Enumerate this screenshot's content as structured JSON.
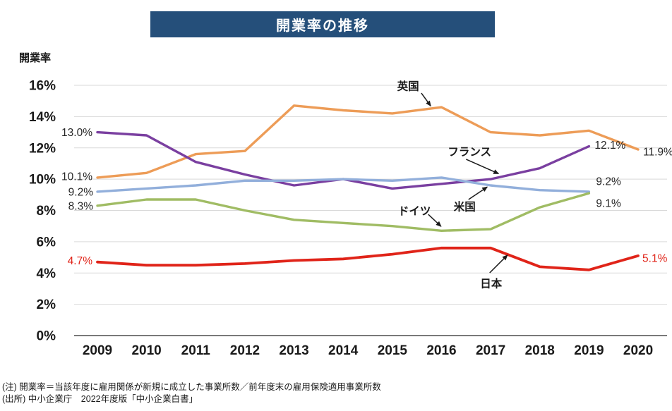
{
  "header": {
    "title": "開業率の推移",
    "title_bar_color": "#254F7A",
    "y_axis_unit": "開業率"
  },
  "footnotes": {
    "note": "(注) 開業率＝当該年度に雇用関係が新規に成立した事業所数／前年度末の雇用保険適用事業所数",
    "source": "(出所) 中小企業庁　2022年度版「中小企業白書」"
  },
  "chart_data": {
    "type": "line",
    "title": "開業率の推移",
    "ylabel": "開業率",
    "ylim": [
      0,
      16
    ],
    "ytick_step": 2,
    "y_tick_labels": [
      "0%",
      "2%",
      "4%",
      "6%",
      "8%",
      "10%",
      "12%",
      "14%",
      "16%"
    ],
    "categories": [
      2009,
      2010,
      2011,
      2012,
      2013,
      2014,
      2015,
      2016,
      2017,
      2018,
      2019,
      2020
    ],
    "grid": "horizontal",
    "legend_position": "inline-annotations",
    "colors": {
      "grid": "#D9D9D9",
      "axis": "#4d4d4d",
      "tick_text": "#1a1a1a",
      "label_text": "#262626"
    },
    "series": [
      {
        "key": "uk",
        "name": "英国",
        "color": "#ED9C57",
        "start_year": 2009,
        "values": [
          10.1,
          10.4,
          11.6,
          11.8,
          14.7,
          14.4,
          14.2,
          14.6,
          13.0,
          12.8,
          13.1,
          11.9
        ],
        "point_labels": [
          {
            "text": "10.1%",
            "at": "first",
            "dx": -7,
            "dy": -2,
            "anchor": "end",
            "color": "#262626"
          },
          {
            "text": "11.9%",
            "at": "last",
            "dx": 7,
            "dy": 3,
            "anchor": "start",
            "color": "#262626"
          }
        ]
      },
      {
        "key": "france",
        "name": "フランス",
        "color": "#7A3FA0",
        "start_year": 2009,
        "values": [
          13.0,
          12.8,
          11.1,
          10.3,
          9.6,
          10.0,
          9.4,
          9.7,
          10.0,
          10.7,
          12.1
        ],
        "point_labels": [
          {
            "text": "13.0%",
            "at": "first",
            "dx": -7,
            "dy": 0,
            "anchor": "end",
            "color": "#262626"
          },
          {
            "text": "12.1%",
            "at": "last",
            "dx": 8,
            "dy": -2,
            "anchor": "start",
            "color": "#262626"
          }
        ]
      },
      {
        "key": "us",
        "name": "米国",
        "color": "#92AFDB",
        "start_year": 2009,
        "values": [
          9.2,
          9.4,
          9.6,
          9.9,
          9.9,
          10.0,
          9.9,
          10.1,
          9.6,
          9.3,
          9.2
        ],
        "point_labels": [
          {
            "text": "9.2%",
            "at": "first",
            "dx": -6,
            "dy": 0,
            "anchor": "end",
            "color": "#262626"
          },
          {
            "text": "9.2%",
            "at": "last",
            "dx": 10,
            "dy": -15,
            "anchor": "start",
            "color": "#262626"
          }
        ]
      },
      {
        "key": "germany",
        "name": "ドイツ",
        "color": "#A0BC64",
        "start_year": 2009,
        "values": [
          8.3,
          8.7,
          8.7,
          8.0,
          7.4,
          7.2,
          7.0,
          6.7,
          6.8,
          8.2,
          9.1
        ],
        "point_labels": [
          {
            "text": "8.3%",
            "at": "first",
            "dx": -6,
            "dy": 0,
            "anchor": "end",
            "color": "#262626"
          },
          {
            "text": "9.1%",
            "at": "last",
            "dx": 10,
            "dy": 14,
            "anchor": "start",
            "color": "#262626"
          }
        ]
      },
      {
        "key": "japan",
        "name": "日本",
        "color": "#E02419",
        "start_year": 2009,
        "values": [
          4.7,
          4.5,
          4.5,
          4.6,
          4.8,
          4.9,
          5.2,
          5.6,
          5.6,
          4.4,
          4.2,
          5.1
        ],
        "point_labels": [
          {
            "text": "4.7%",
            "at": "first",
            "dx": -7,
            "dy": -2,
            "anchor": "end",
            "color": "#E02419"
          },
          {
            "text": "5.1%",
            "at": "last",
            "dx": 6,
            "dy": 3,
            "anchor": "start",
            "color": "#E02419"
          }
        ]
      }
    ],
    "annotations": [
      {
        "key": "uk",
        "label": "英国",
        "text_at": {
          "year": 2015.32,
          "value": 15.95
        },
        "arrow_from": {
          "year": 2015.59,
          "value": 15.5
        },
        "arrow_to": {
          "year": 2015.78,
          "value": 14.68
        }
      },
      {
        "key": "france",
        "label": "フランス",
        "text_at": {
          "year": 2016.57,
          "value": 11.76
        },
        "arrow_from": {
          "year": 2016.5,
          "value": 11.27
        },
        "arrow_to": {
          "year": 2017.16,
          "value": 10.35
        }
      },
      {
        "key": "us",
        "label": "米国",
        "text_at": {
          "year": 2016.47,
          "value": 8.25
        },
        "arrow_from": {
          "year": 2016.55,
          "value": 8.7
        },
        "arrow_to": {
          "year": 2016.93,
          "value": 9.5
        }
      },
      {
        "key": "germany",
        "label": "ドイツ",
        "text_at": {
          "year": 2015.45,
          "value": 7.98
        },
        "arrow_from": {
          "year": 2015.73,
          "value": 7.75
        },
        "arrow_to": {
          "year": 2015.99,
          "value": 6.98
        }
      },
      {
        "key": "japan",
        "label": "日本",
        "text_at": {
          "year": 2017.01,
          "value": 3.33
        },
        "arrow_from": {
          "year": 2016.98,
          "value": 4.01
        },
        "arrow_to": {
          "year": 2017.34,
          "value": 5.14
        }
      }
    ]
  }
}
